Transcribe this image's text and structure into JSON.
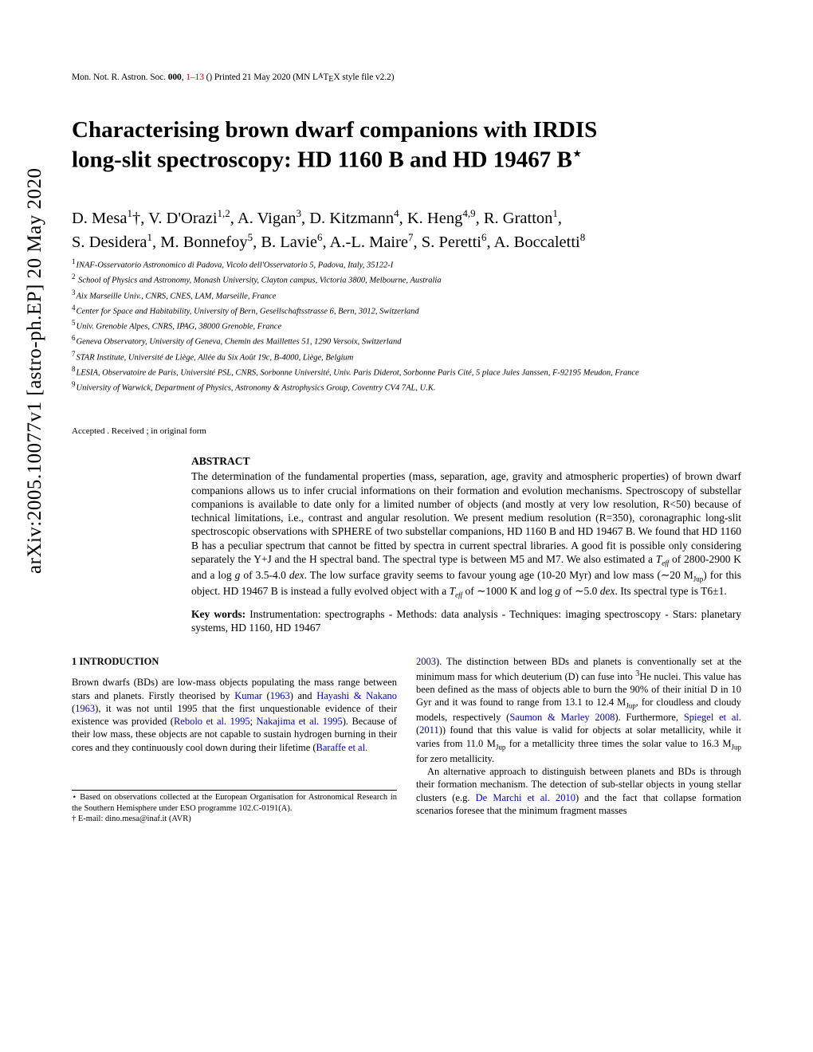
{
  "arxiv_stamp": "arXiv:2005.10077v1  [astro-ph.EP]  20 May 2020",
  "header": {
    "journal": "Mon. Not. R. Astron. Soc.",
    "volume": "000",
    "pages": "1–13",
    "printed": "Printed 21 May 2020",
    "style": "(MN LATEX style file v2.2)"
  },
  "title_line1": "Characterising brown dwarf companions with IRDIS",
  "title_line2": "long-slit spectroscopy: HD 1160 B and HD 19467 B",
  "authors_html": "D. Mesa<sup>1</sup>†, V. D'Orazi<sup>1,2</sup>, A. Vigan<sup>3</sup>, D. Kitzmann<sup>4</sup>, K. Heng<sup>4,9</sup>, R. Gratton<sup>1</sup>, S. Desidera<sup>1</sup>, M. Bonnefoy<sup>5</sup>, B. Lavie<sup>6</sup>, A.-L. Maire<sup>7</sup>, S. Peretti<sup>6</sup>, A. Boccaletti<sup>8</sup>",
  "affiliations": [
    {
      "n": "1",
      "text": "INAF-Osservatorio Astronomico di Padova, Vicolo dell'Osservatorio 5, Padova, Italy, 35122-I"
    },
    {
      "n": "2",
      "text": "School of Physics and Astronomy, Monash University, Clayton campus, Victoria 3800, Melbourne, Australia"
    },
    {
      "n": "3",
      "text": "Aix Marseille Univ., CNRS, CNES, LAM, Marseille, France"
    },
    {
      "n": "4",
      "text": "Center for Space and Habitability, University of Bern, Gesellschaftsstrasse 6, Bern, 3012, Switzerland"
    },
    {
      "n": "5",
      "text": "Univ. Grenoble Alpes, CNRS, IPAG, 38000 Grenoble, France"
    },
    {
      "n": "6",
      "text": "Geneva Observatory, University of Geneva, Chemin des Maillettes 51, 1290 Versoix, Switzerland"
    },
    {
      "n": "7",
      "text": "STAR Institute, Université de Liège, Allée du Six Août 19c, B-4000, Liège, Belgium"
    },
    {
      "n": "8",
      "text": "LESIA, Observatoire de Paris, Université PSL, CNRS, Sorbonne Université, Univ. Paris Diderot, Sorbonne Paris Cité, 5 place Jules Janssen, F-92195 Meudon, France"
    },
    {
      "n": "9",
      "text": "University of Warwick, Department of Physics, Astronomy & Astrophysics Group, Coventry CV4 7AL, U.K."
    }
  ],
  "accepted": "Accepted . Received ; in original form",
  "abstract_label": "ABSTRACT",
  "abstract": "The determination of the fundamental properties (mass, separation, age, gravity and atmospheric properties) of brown dwarf companions allows us to infer crucial informations on their formation and evolution mechanisms. Spectroscopy of substellar companions is available to date only for a limited number of objects (and mostly at very low resolution, R<50) because of technical limitations, i.e., contrast and angular resolution. We present medium resolution (R=350), coronagraphic long-slit spectroscopic observations with SPHERE of two substellar companions, HD 1160 B and HD 19467 B. We found that HD 1160 B has a peculiar spectrum that cannot be fitted by spectra in current spectral libraries. A good fit is possible only considering separately the Y+J and the H spectral band. The spectral type is between M5 and M7. We also estimated a Teff of 2800-2900 K and a log g of 3.5-4.0 dex. The low surface gravity seems to favour young age (10-20 Myr) and low mass (∼20 MJup) for this object. HD 19467 B is instead a fully evolved object with a Teff of ∼1000 K and log g of ∼5.0 dex. Its spectral type is T6±1.",
  "keywords_label": "Key words:",
  "keywords": "Instrumentation: spectrographs - Methods: data analysis - Techniques: imaging spectroscopy - Stars: planetary systems, HD 1160, HD 19467",
  "section1_heading": "1   INTRODUCTION",
  "col_left_p1_a": "Brown dwarfs (BDs) are low-mass objects populating the mass range between stars and planets. Firstly theorised by ",
  "cite1": "Kumar",
  "cite1y": "1963",
  "col_left_and": " and ",
  "cite2": "Hayashi & Nakano",
  "cite2y": "1963",
  "col_left_p1_b": ", it was not until 1995 that the first unquestionable evidence of their existence was provided (",
  "cite3": "Rebolo et al. 1995",
  "cite_sep": "; ",
  "cite4": "Nakajima et al. 1995",
  "col_left_p1_c": "). Because of their low mass, these objects are not capable to sustain hydrogen burning in their cores and they continuously cool down during their lifetime (",
  "cite5": "Baraffe et al.",
  "col_right_p1_a": "2003",
  "col_right_p1_b": "). The distinction between BDs and planets is conventionally set at the minimum mass for which deuterium (D) can fuse into ³He nuclei. This value has been defined as the mass of objects able to burn the 90% of their initial D in 10 Gyr and it was found to range from 13.1 to 12.4 MJup, for cloudless and cloudy models, respectively (",
  "cite6": "Saumon & Marley 2008",
  "col_right_p1_c": "). Furthermore, ",
  "cite7": "Spiegel et al.",
  "cite7y": "2011",
  "col_right_p1_d": " found that this value is valid for objects at solar metallicity, while it varies from 11.0 MJup for a metallicity three times the solar value to 16.3 MJup for zero metallicity.",
  "col_right_p2_a": "An alternative approach to distinguish between planets and BDs is through their formation mechanism. The detection of sub-stellar objects in young stellar clusters (e.g. ",
  "cite8": "De Marchi et al. 2010",
  "col_right_p2_b": ") and the fact that collapse formation scenarios foresee that the minimum fragment masses",
  "footnote_star": "⋆ Based on observations collected at the European Organisation for Astronomical Research in the Southern Hemisphere under ESO programme 102.C-0191(A).",
  "footnote_dagger": "† E-mail: dino.mesa@inaf.it (AVR)",
  "colors": {
    "text": "#000000",
    "background": "#ffffff",
    "citation": "#0000cc",
    "pages_red": "#cc0000"
  }
}
